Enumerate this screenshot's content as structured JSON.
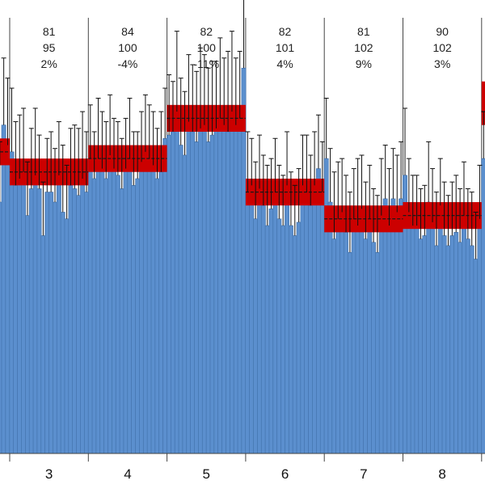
{
  "chart_data": {
    "type": "bar",
    "title": "",
    "xlabel": "",
    "ylabel": "",
    "ylim": [
      0,
      130
    ],
    "grid": false,
    "colors": {
      "bar": "#5b8fce",
      "bar_edge": "#3f6fa8",
      "band": "#cc0000",
      "band_line": "#1a1a1a",
      "divider": "#444444",
      "error": "#111111"
    },
    "groups": [
      {
        "label": "3",
        "stats": [
          "81",
          "95",
          "2%"
        ],
        "band": {
          "mean": 84,
          "low": 80,
          "high": 88
        },
        "values": [
          90,
          80,
          82,
          84,
          71,
          79,
          83,
          79,
          65,
          78,
          78,
          75,
          83,
          72,
          70,
          80,
          79,
          77,
          82,
          78
        ],
        "errors": [
          19,
          19,
          19,
          19,
          16,
          18,
          20,
          16,
          16,
          16,
          18,
          16,
          16,
          20,
          16,
          17,
          19,
          20,
          20,
          18
        ]
      },
      {
        "label": "4",
        "stats": [
          "84",
          "100",
          "-4%"
        ],
        "band": {
          "mean": 88,
          "low": 84,
          "high": 92
        },
        "values": [
          88,
          82,
          88,
          85,
          82,
          89,
          85,
          83,
          79,
          85,
          88,
          80,
          82,
          87,
          90,
          88,
          86,
          82,
          84,
          94
        ],
        "errors": [
          16,
          14,
          18,
          17,
          17,
          18,
          15,
          16,
          15,
          15,
          18,
          16,
          14,
          15,
          17,
          16,
          16,
          15,
          18,
          15
        ]
      },
      {
        "label": "5",
        "stats": [
          "82",
          "100",
          "-11%"
        ],
        "band": {
          "mean": 100,
          "low": 96,
          "high": 104
        },
        "values": [
          95,
          96,
          102,
          92,
          89,
          99,
          96,
          93,
          97,
          98,
          93,
          95,
          97,
          100,
          98,
          96,
          102,
          98,
          100,
          115
        ],
        "errors": [
          18,
          15,
          24,
          20,
          19,
          20,
          20,
          21,
          24,
          21,
          22,
          22,
          20,
          24,
          20,
          24,
          24,
          20,
          20,
          23
        ]
      },
      {
        "label": "6",
        "stats": [
          "82",
          "101",
          "4%"
        ],
        "band": {
          "mean": 78,
          "low": 74,
          "high": 82
        },
        "values": [
          78,
          80,
          70,
          79,
          74,
          68,
          73,
          78,
          70,
          68,
          80,
          68,
          65,
          69,
          80,
          78,
          74,
          80,
          85,
          78
        ],
        "errors": [
          18,
          14,
          17,
          16,
          15,
          18,
          15,
          16,
          16,
          15,
          16,
          16,
          15,
          16,
          15,
          17,
          15,
          16,
          16,
          15
        ]
      },
      {
        "label": "7",
        "stats": [
          "81",
          "102",
          "9%"
        ],
        "band": {
          "mean": 70,
          "low": 66,
          "high": 74
        },
        "values": [
          88,
          75,
          64,
          70,
          72,
          66,
          60,
          70,
          68,
          73,
          64,
          70,
          63,
          60,
          71,
          76,
          68,
          76,
          72,
          76
        ],
        "errors": [
          18,
          16,
          20,
          17,
          16,
          17,
          18,
          15,
          20,
          16,
          17,
          16,
          16,
          17,
          17,
          16,
          17,
          15,
          17,
          17
        ]
      },
      {
        "label": "8",
        "stats": [
          "90",
          "102",
          "3%"
        ],
        "band": {
          "mean": 71,
          "low": 67,
          "high": 75
        },
        "values": [
          83,
          72,
          68,
          68,
          64,
          65,
          75,
          69,
          62,
          74,
          65,
          62,
          65,
          66,
          63,
          71,
          64,
          62,
          58,
          70
        ],
        "errors": [
          20,
          16,
          15,
          15,
          15,
          15,
          18,
          16,
          16,
          14,
          16,
          15,
          16,
          17,
          16,
          16,
          15,
          16,
          14,
          16
        ]
      }
    ],
    "partial_left": {
      "band": {
        "mean": 90,
        "low": 86,
        "high": 94
      },
      "values": [
        88,
        75,
        98,
        92
      ],
      "errors": [
        20,
        18,
        20,
        20
      ]
    },
    "partial_right": {
      "band": {
        "mean": 102,
        "low": 98,
        "high": 111
      },
      "values": [
        88,
        95
      ],
      "errors": [
        14,
        20
      ]
    }
  }
}
